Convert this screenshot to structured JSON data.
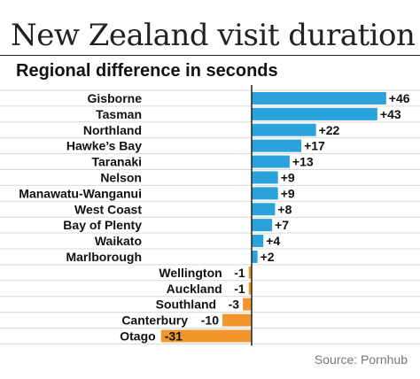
{
  "header": {
    "title": "New Zealand visit duration",
    "subtitle": "Regional difference in seconds"
  },
  "source": "Source: Pornhub",
  "colors": {
    "positive": "#2aa3dc",
    "negative": "#f0962d",
    "grid": "#d9d9d9",
    "axis": "#222222",
    "text": "#111111"
  },
  "chart_data": {
    "type": "bar",
    "orientation": "horizontal",
    "title": "New Zealand visit duration",
    "subtitle": "Regional difference in seconds",
    "categories": [
      "Gisborne",
      "Tasman",
      "Northland",
      "Hawke’s Bay",
      "Taranaki",
      "Nelson",
      "Manawatu-Wanganui",
      "West Coast",
      "Bay of Plenty",
      "Waikato",
      "Marlborough",
      "Wellington",
      "Auckland",
      "Southland",
      "Canterbury",
      "Otago"
    ],
    "values": [
      46,
      43,
      22,
      17,
      13,
      9,
      9,
      8,
      7,
      4,
      2,
      -1,
      -1,
      -3,
      -10,
      -31
    ],
    "labels": [
      "+46",
      "+43",
      "+22",
      "+17",
      "+13",
      "+9",
      "+9",
      "+8",
      "+7",
      "+4",
      "+2",
      "-1",
      "-1",
      "-3",
      "-10",
      "-31"
    ],
    "xlim": [
      -31,
      46
    ],
    "grid": "horizontal row lines",
    "legend": "none"
  }
}
